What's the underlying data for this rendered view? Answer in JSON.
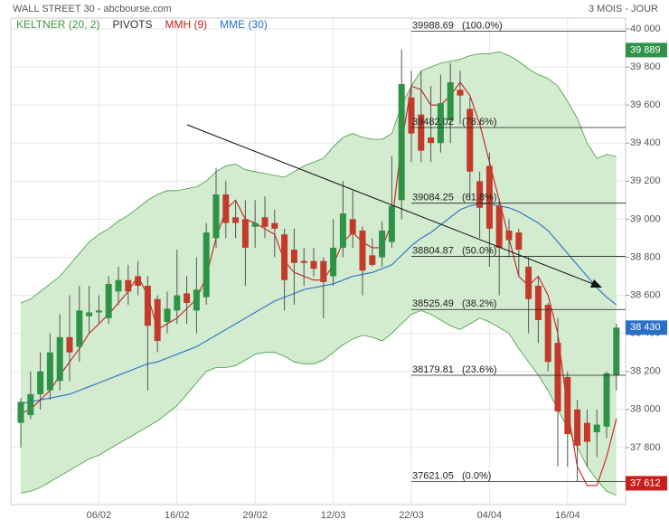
{
  "chart_data": {
    "type": "candlestick",
    "title": "WALL STREET 30 - abcbourse.com",
    "subtitle": "3 MOIS - JOUR",
    "categories": [
      null,
      null,
      null,
      null,
      null,
      null,
      null,
      null,
      "06/02",
      null,
      null,
      null,
      null,
      null,
      null,
      null,
      "16/02",
      null,
      null,
      null,
      null,
      null,
      null,
      null,
      "29/02",
      null,
      null,
      null,
      null,
      null,
      null,
      null,
      "12/03",
      null,
      null,
      null,
      null,
      null,
      null,
      null,
      "22/03",
      null,
      null,
      null,
      null,
      null,
      null,
      null,
      "04/04",
      null,
      null,
      null,
      null,
      null,
      null,
      null,
      "16/04",
      null,
      null,
      null,
      null,
      null
    ],
    "open": [
      37930,
      37970,
      38080,
      38100,
      38150,
      38380,
      38330,
      38490,
      38510,
      38480,
      38620,
      38680,
      38700,
      38650,
      38580,
      38460,
      38520,
      38610,
      38520,
      38590,
      38900,
      39130,
      39010,
      39000,
      38960,
      39010,
      38980,
      38920,
      38840,
      38780,
      38780,
      38780,
      38700,
      38850,
      39000,
      38940,
      38810,
      38800,
      38880,
      39100,
      39640,
      39550,
      39430,
      39400,
      39520,
      39680,
      39580,
      39200,
      39280,
      39070,
      38940,
      38930,
      38750,
      38650,
      38550,
      38350,
      38170,
      38000,
      37930,
      37880,
      37910,
      38180
    ],
    "high": [
      38060,
      38200,
      38300,
      38400,
      38500,
      38600,
      38650,
      38650,
      38600,
      38700,
      38750,
      38760,
      38780,
      38700,
      38600,
      38620,
      38840,
      38700,
      38800,
      38980,
      39270,
      39200,
      39100,
      39100,
      39100,
      39120,
      39050,
      38950,
      38950,
      38850,
      38850,
      38800,
      39000,
      39200,
      39150,
      38960,
      38900,
      38990,
      39330,
      39890,
      39780,
      39780,
      39700,
      39760,
      39820,
      39780,
      39640,
      39250,
      39350,
      39110,
      39000,
      38950,
      38800,
      38700,
      38560,
      38480,
      38200,
      38050,
      38000,
      38000,
      38200,
      38450
    ],
    "low": [
      37800,
      37950,
      38000,
      38050,
      38100,
      38150,
      38250,
      38400,
      38450,
      38450,
      38550,
      38550,
      38600,
      38100,
      38300,
      38400,
      38450,
      38450,
      38400,
      38550,
      38850,
      38900,
      38900,
      38650,
      38850,
      38900,
      38800,
      38520,
      38550,
      38650,
      38700,
      38480,
      38650,
      38800,
      38850,
      38600,
      38750,
      38750,
      38850,
      39000,
      39300,
      39300,
      39300,
      39350,
      39400,
      39500,
      39100,
      38900,
      38750,
      38600,
      38800,
      38700,
      38400,
      38350,
      38200,
      37700,
      37700,
      37620,
      37700,
      37750,
      37850,
      38100
    ],
    "close": [
      38040,
      38080,
      38200,
      38300,
      38380,
      38300,
      38520,
      38510,
      38520,
      38660,
      38680,
      38620,
      38650,
      38440,
      38360,
      38530,
      38600,
      38560,
      38630,
      38930,
      39130,
      38980,
      38980,
      38850,
      38980,
      38960,
      38950,
      38680,
      38770,
      38770,
      38740,
      38670,
      38850,
      39030,
      38920,
      38730,
      38760,
      38940,
      39070,
      39710,
      39450,
      39360,
      39400,
      39610,
      39720,
      39650,
      39250,
      39060,
      38950,
      38850,
      38890,
      38840,
      38580,
      38470,
      38250,
      37990,
      37870,
      37810,
      37830,
      37920,
      38190,
      38430
    ],
    "up_color": "#2e9346",
    "down_color": "#c23a2c",
    "band": {
      "name": "KELTNER (20, 2)",
      "color": "#3f9a3f",
      "fill": "#d3ebcf",
      "upper": [
        38560,
        38580,
        38620,
        38660,
        38700,
        38760,
        38820,
        38880,
        38920,
        38950,
        38990,
        39020,
        39060,
        39100,
        39130,
        39150,
        39150,
        39160,
        39170,
        39200,
        39250,
        39280,
        39290,
        39260,
        39250,
        39240,
        39230,
        39220,
        39250,
        39280,
        39300,
        39320,
        39380,
        39430,
        39450,
        39430,
        39420,
        39420,
        39450,
        39600,
        39700,
        39780,
        39800,
        39820,
        39830,
        39840,
        39860,
        39870,
        39870,
        39880,
        39860,
        39830,
        39790,
        39760,
        39740,
        39700,
        39620,
        39530,
        39400,
        39320,
        39340,
        39330
      ],
      "lower": [
        37560,
        37570,
        37590,
        37620,
        37650,
        37680,
        37710,
        37740,
        37760,
        37790,
        37820,
        37850,
        37880,
        37910,
        37940,
        37980,
        38020,
        38080,
        38140,
        38200,
        38220,
        38220,
        38230,
        38260,
        38290,
        38300,
        38300,
        38280,
        38250,
        38240,
        38240,
        38260,
        38300,
        38340,
        38370,
        38390,
        38380,
        38360,
        38400,
        38450,
        38500,
        38520,
        38500,
        38470,
        38440,
        38420,
        38450,
        38480,
        38460,
        38430,
        38400,
        38320,
        38250,
        38180,
        38100,
        38000,
        37900,
        37800,
        37700,
        37630,
        37570,
        37550
      ]
    },
    "pivots": {
      "name": "PIVOTS",
      "color": "#333333"
    },
    "series": [
      {
        "name": "MMH (9)",
        "color": "#c8201e",
        "values": [
          37980,
          38000,
          38050,
          38100,
          38180,
          38250,
          38320,
          38400,
          38450,
          38500,
          38560,
          38620,
          38700,
          38600,
          38420,
          38450,
          38480,
          38530,
          38580,
          38700,
          38900,
          39050,
          39100,
          39000,
          38980,
          38950,
          38920,
          38780,
          38720,
          38700,
          38680,
          38680,
          38760,
          38880,
          38930,
          38880,
          38850,
          38850,
          38980,
          39400,
          39700,
          39680,
          39600,
          39600,
          39650,
          39720,
          39650,
          39500,
          39300,
          39100,
          38900,
          38700,
          38650,
          38700,
          38600,
          38400,
          38000,
          37700,
          37600,
          37600,
          37750,
          37950
        ]
      },
      {
        "name": "MME (30)",
        "color": "#2a6fc9",
        "values": [
          38030,
          38040,
          38050,
          38060,
          38070,
          38080,
          38100,
          38120,
          38140,
          38160,
          38180,
          38200,
          38220,
          38240,
          38250,
          38270,
          38290,
          38310,
          38330,
          38360,
          38390,
          38420,
          38450,
          38480,
          38510,
          38540,
          38570,
          38590,
          38610,
          38630,
          38640,
          38650,
          38660,
          38680,
          38700,
          38710,
          38720,
          38740,
          38760,
          38810,
          38860,
          38900,
          38930,
          38970,
          39010,
          39050,
          39070,
          39080,
          39080,
          39070,
          39060,
          39040,
          39010,
          38980,
          38940,
          38880,
          38820,
          38760,
          38700,
          38640,
          38590,
          38550
        ]
      }
    ],
    "fibonacci": [
      {
        "value": 39988.69,
        "label": "(100.0%)"
      },
      {
        "value": 39482.02,
        "label": "(78.6%)"
      },
      {
        "value": 39084.25,
        "label": "(61.8%)"
      },
      {
        "value": 38804.87,
        "label": "(50.0%)"
      },
      {
        "value": 38525.49,
        "label": "(38.2%)"
      },
      {
        "value": 38179.81,
        "label": "(23.6%)"
      },
      {
        "value": 37621.05,
        "label": "(0.0%)"
      }
    ],
    "price_tags": [
      {
        "value": 39889,
        "label": "39 889",
        "color": "#2e9346"
      },
      {
        "value": 38430,
        "label": "38 430",
        "color": "#2a6fc9"
      },
      {
        "value": 37612,
        "label": "37 612",
        "color": "#c8201e"
      }
    ],
    "ylim": [
      37500,
      40057
    ],
    "yticks": [
      {
        "value": 37800,
        "label": "37 800"
      },
      {
        "value": 38000,
        "label": "38 000"
      },
      {
        "value": 38200,
        "label": "38 200"
      },
      {
        "value": 38400,
        "label": "38 400"
      },
      {
        "value": 38600,
        "label": "38 600"
      },
      {
        "value": 38800,
        "label": "38 800"
      },
      {
        "value": 39000,
        "label": "39 000"
      },
      {
        "value": 39200,
        "label": "39 200"
      },
      {
        "value": 39400,
        "label": "39 400"
      },
      {
        "value": 39600,
        "label": "39 600"
      },
      {
        "value": 39800,
        "label": "39 800"
      },
      {
        "value": 40000,
        "label": "40 000"
      }
    ],
    "grid": true
  }
}
